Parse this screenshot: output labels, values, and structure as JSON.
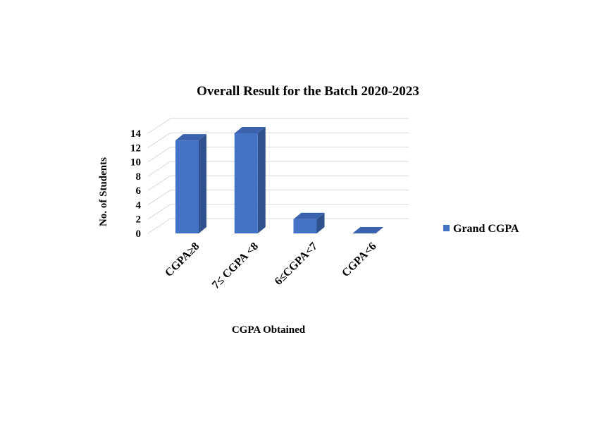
{
  "chart_data": {
    "type": "bar",
    "title": "Overall Result for the Batch 2020-2023",
    "xlabel": "CGPA Obtained",
    "ylabel": "No. of Students",
    "categories": [
      "CGPA≥8",
      "7≤ CGPA <8",
      "6≤CGPA<7",
      "CGPA<6"
    ],
    "series": [
      {
        "name": "Grand CGPA",
        "values": [
          13,
          14,
          2,
          0
        ]
      }
    ],
    "ylim": [
      0,
      14
    ],
    "yticks": [
      "0",
      "2",
      "4",
      "6",
      "8",
      "10",
      "12",
      "14"
    ],
    "grid": true,
    "legend_position": "right",
    "style": "3d-column",
    "colors": {
      "bar_front": "#4472c4",
      "bar_side": "#2f528f",
      "bar_top": "#3a62ad"
    }
  }
}
